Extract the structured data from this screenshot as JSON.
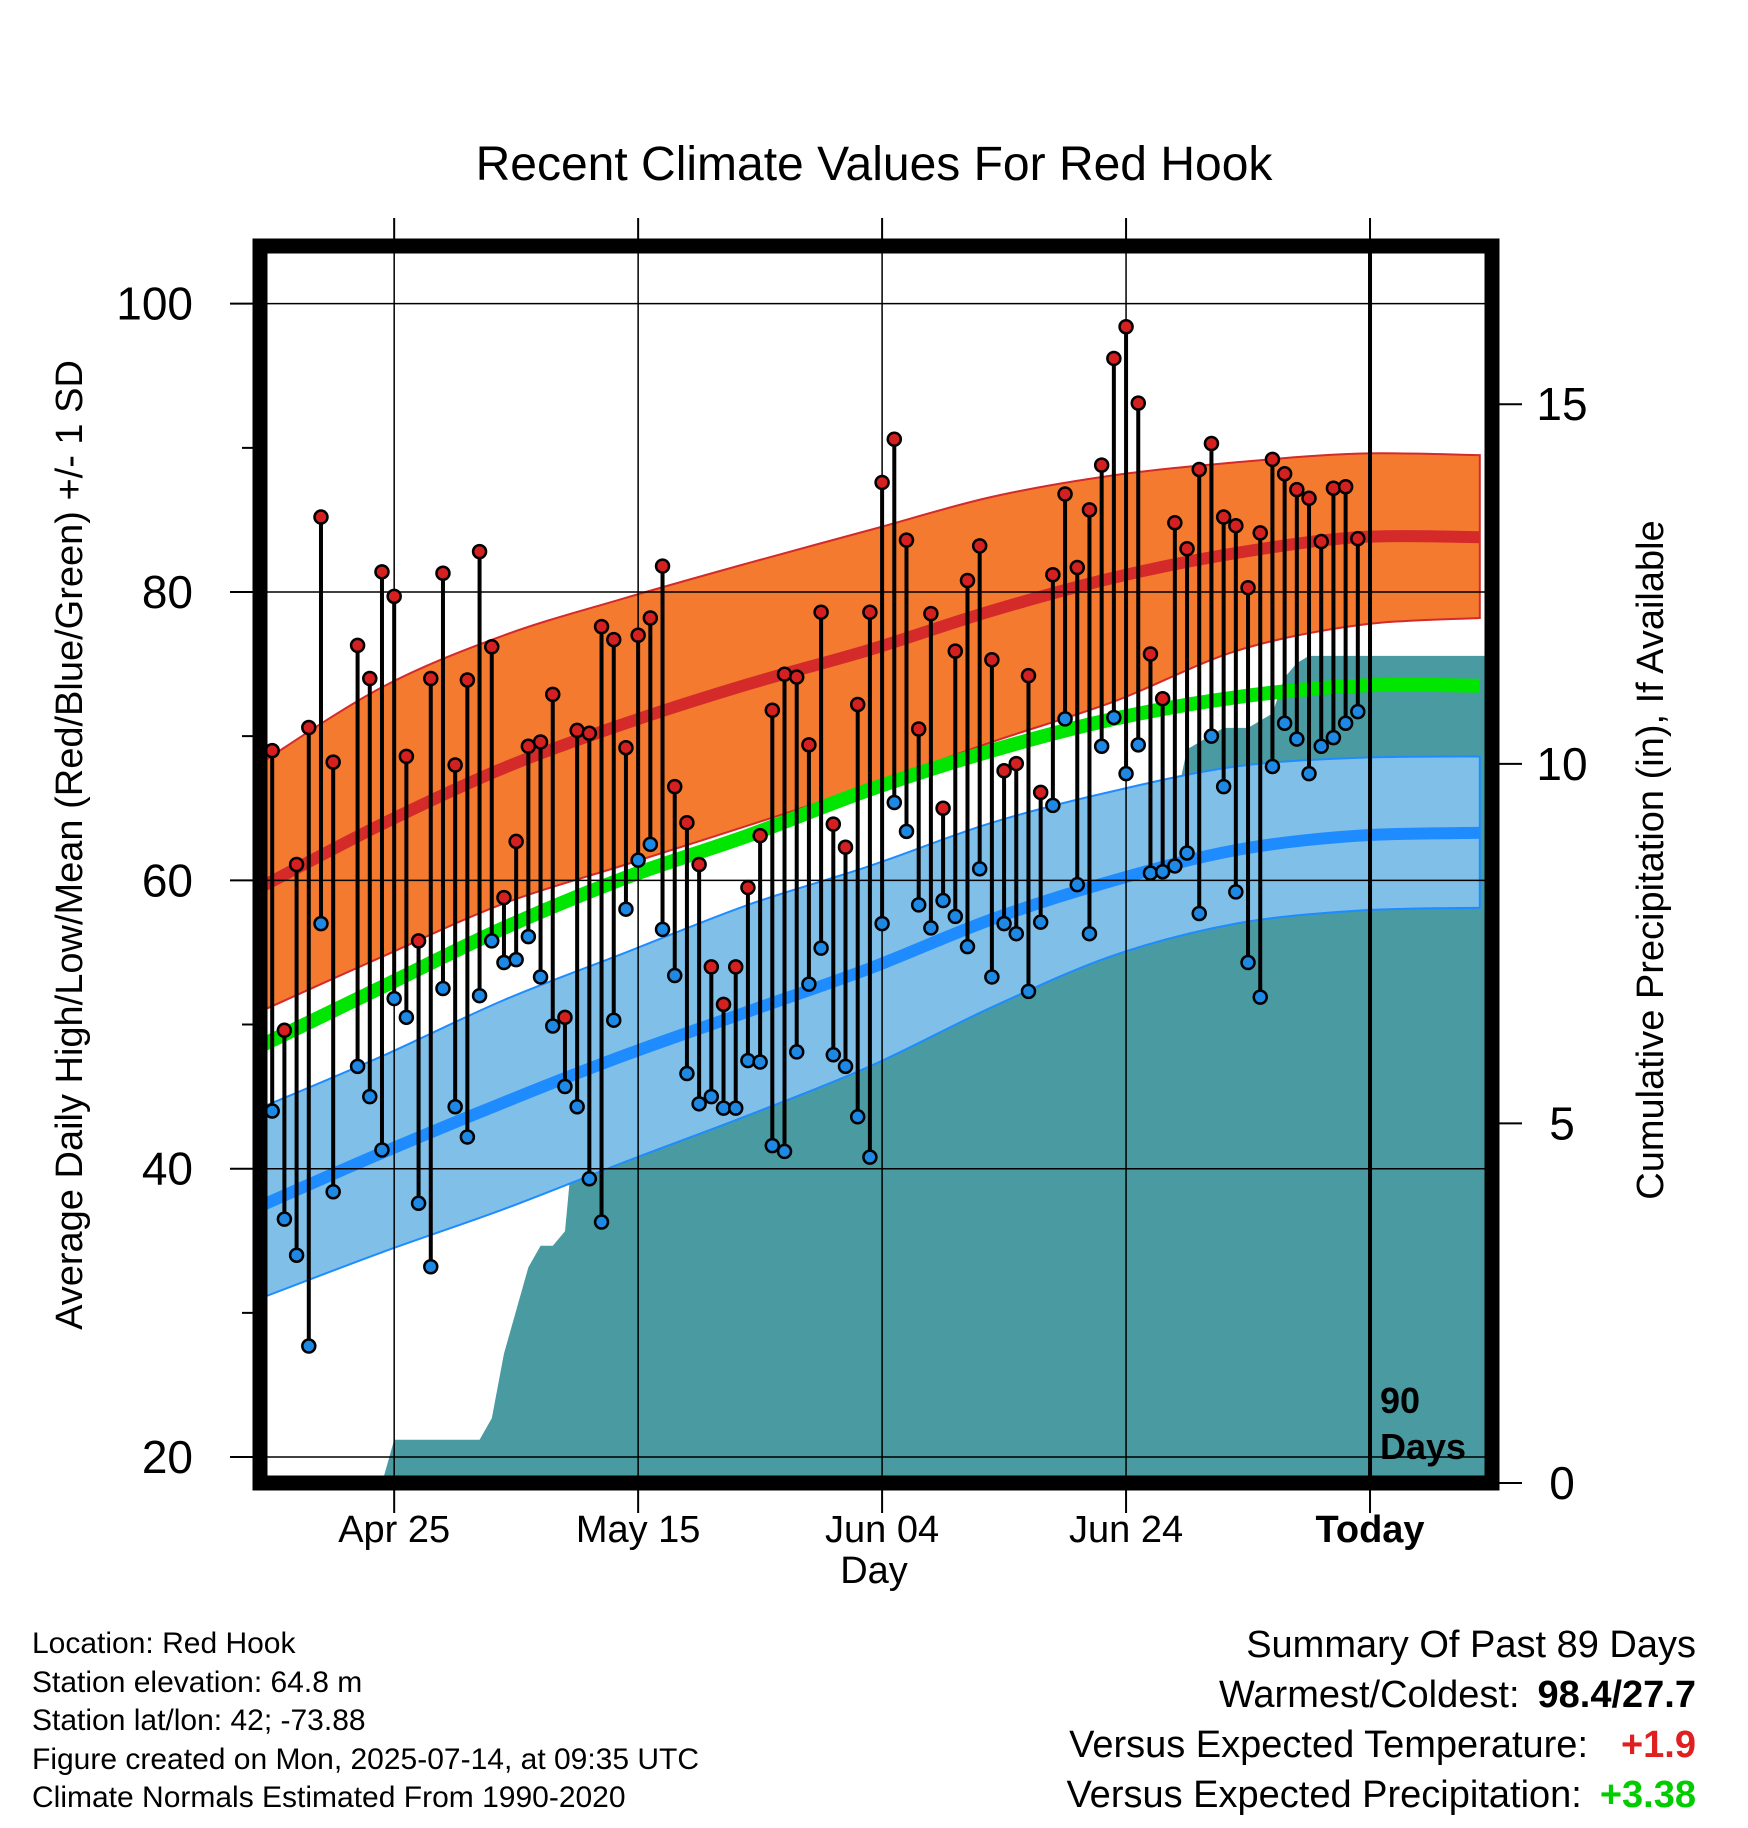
{
  "chart_data": {
    "type": "line",
    "title": "Recent Climate Values For Red Hook",
    "xlabel": "Day",
    "ylabel": "Average Daily High/Low/Mean (Red/Blue/Green) +/- 1 SD",
    "y2label": "Cumulative Precipitation (in), If Available",
    "ylim": [
      18.2,
      104
    ],
    "y2lim": [
      0,
      17.2
    ],
    "y_ticks": [
      "20",
      "40",
      "60",
      "80",
      "100"
    ],
    "y2_ticks": [
      "0",
      "5",
      "10",
      "15"
    ],
    "x_ticks": [
      {
        "label": "Apr 25",
        "day": 11
      },
      {
        "label": "May 15",
        "day": 31
      },
      {
        "label": "Jun 04",
        "day": 51
      },
      {
        "label": "Jun 24",
        "day": 71
      },
      {
        "label": "Today",
        "day": 91
      }
    ],
    "xlim": [
      0,
      101
    ],
    "today_marker": {
      "day": 91,
      "label_line1": "90",
      "label_line2": "Days"
    },
    "grid": true,
    "colors": {
      "high": "#d42a2a",
      "high_band": "#f47a30",
      "low": "#1e8cff",
      "low_band": "#80c0e8",
      "mean": "#00e600",
      "precip": "#4a9aa2"
    },
    "normals": {
      "days": [
        0,
        10,
        20,
        30,
        40,
        50,
        60,
        70,
        80,
        90,
        100
      ],
      "high_mean": [
        59.5,
        63.9,
        67.8,
        70.9,
        73.6,
        76.0,
        78.7,
        81.0,
        82.7,
        83.8,
        83.8
      ],
      "high_sd_low": [
        50.9,
        54.7,
        58.4,
        61.1,
        63.8,
        66.6,
        69.6,
        72.4,
        75.9,
        77.7,
        78.2
      ],
      "high_sd_high": [
        68.1,
        73.4,
        77.0,
        79.6,
        82.0,
        84.3,
        86.6,
        88.1,
        89.0,
        89.6,
        89.5
      ],
      "mean": [
        48.5,
        52.6,
        56.7,
        60.2,
        63.1,
        66.3,
        69.0,
        71.2,
        72.7,
        73.5,
        73.5
      ],
      "low_mean": [
        37.4,
        41.1,
        44.6,
        47.9,
        50.9,
        53.9,
        57.3,
        60.0,
        62.1,
        63.1,
        63.3
      ],
      "low_sd_low": [
        31.0,
        34.2,
        37.2,
        40.5,
        43.7,
        47.1,
        51.2,
        54.8,
        57.0,
        57.9,
        58.1
      ],
      "low_sd_high": [
        44.2,
        47.8,
        51.7,
        55.0,
        58.3,
        61.0,
        64.0,
        66.2,
        67.9,
        68.5,
        68.6
      ]
    },
    "observed": {
      "days": [
        1,
        2,
        3,
        4,
        5,
        6,
        7,
        8,
        9,
        10,
        11,
        12,
        13,
        14,
        15,
        16,
        17,
        18,
        19,
        20,
        21,
        22,
        23,
        24,
        25,
        26,
        27,
        28,
        29,
        30,
        31,
        32,
        33,
        34,
        35,
        36,
        37,
        38,
        39,
        40,
        41,
        42,
        43,
        44,
        45,
        46,
        47,
        48,
        49,
        50,
        51,
        52,
        53,
        54,
        55,
        56,
        57,
        58,
        59,
        60,
        61,
        62,
        63,
        64,
        65,
        66,
        67,
        68,
        69,
        70,
        71,
        72,
        73,
        74,
        75,
        76,
        77,
        78,
        79,
        80,
        81,
        82,
        83,
        84,
        85,
        86,
        87,
        88,
        89,
        90
      ],
      "high": [
        69.0,
        49.6,
        61.1,
        70.6,
        85.2,
        68.2,
        null,
        76.3,
        74.0,
        81.4,
        79.7,
        68.6,
        55.8,
        74.0,
        81.3,
        68.0,
        73.9,
        82.8,
        76.2,
        58.8,
        62.7,
        69.3,
        69.6,
        72.9,
        50.5,
        70.4,
        70.2,
        77.6,
        76.7,
        69.2,
        77.0,
        78.2,
        81.8,
        66.5,
        64.0,
        61.1,
        54.0,
        51.4,
        54.0,
        59.5,
        63.1,
        71.8,
        74.3,
        74.1,
        69.4,
        78.6,
        63.9,
        62.3,
        72.2,
        78.6,
        87.6,
        90.6,
        83.6,
        70.5,
        78.5,
        65.0,
        75.9,
        80.8,
        83.2,
        75.3,
        67.6,
        68.1,
        74.2,
        66.1,
        81.2,
        86.8,
        81.7,
        85.7,
        88.8,
        96.2,
        98.4,
        93.1,
        75.7,
        72.6,
        84.8,
        83.0,
        88.5,
        90.3,
        85.2,
        84.6,
        80.3,
        84.1,
        89.2,
        88.2,
        87.1,
        86.5,
        83.5,
        87.2,
        87.3,
        83.7
      ],
      "low": [
        44.0,
        36.5,
        34.0,
        27.7,
        57.0,
        38.4,
        null,
        47.1,
        45.0,
        41.3,
        51.8,
        50.5,
        37.6,
        33.2,
        52.5,
        44.3,
        42.2,
        52.0,
        55.8,
        54.3,
        54.5,
        56.1,
        53.3,
        49.9,
        45.7,
        44.3,
        39.3,
        36.3,
        50.3,
        58.0,
        61.4,
        62.5,
        56.6,
        53.4,
        46.6,
        44.5,
        45.0,
        44.2,
        44.2,
        47.5,
        47.4,
        41.6,
        41.2,
        48.1,
        52.8,
        55.3,
        47.9,
        47.1,
        43.6,
        40.8,
        57.0,
        65.4,
        63.4,
        58.3,
        56.7,
        58.6,
        57.5,
        55.4,
        60.8,
        53.3,
        57.0,
        56.3,
        52.3,
        57.1,
        65.2,
        71.2,
        59.7,
        56.3,
        69.3,
        71.3,
        67.4,
        69.4,
        60.5,
        60.6,
        61.0,
        61.9,
        57.7,
        70.0,
        66.5,
        59.2,
        54.3,
        51.9,
        67.9,
        70.9,
        69.8,
        67.4,
        69.3,
        69.9,
        70.9,
        71.7
      ]
    },
    "precip": {
      "days": [
        0,
        10,
        11,
        18,
        19,
        20,
        21,
        22,
        23,
        24,
        25,
        26,
        27,
        29,
        31,
        33,
        36,
        37,
        38,
        40,
        45,
        46,
        47,
        49,
        51,
        52,
        53,
        55,
        56,
        57,
        59,
        61,
        62,
        64,
        65,
        66,
        67,
        69,
        70,
        71,
        74,
        75,
        76,
        77,
        78,
        79,
        81,
        82,
        83,
        84,
        85,
        86,
        87,
        101
      ],
      "values": [
        0,
        0,
        0.6,
        0.6,
        0.9,
        1.8,
        2.4,
        3.0,
        3.3,
        3.3,
        3.5,
        5.3,
        5.3,
        5.3,
        5.4,
        5.4,
        5.4,
        5.5,
        5.6,
        5.7,
        5.7,
        5.8,
        7.5,
        7.5,
        7.5,
        7.8,
        8.0,
        8.2,
        8.4,
        8.5,
        8.5,
        8.7,
        8.7,
        8.9,
        9.2,
        9.3,
        9.3,
        9.4,
        9.4,
        9.4,
        9.4,
        9.4,
        10.2,
        10.3,
        10.4,
        10.5,
        10.5,
        10.6,
        10.7,
        11.2,
        11.4,
        11.5,
        11.5,
        11.5
      ]
    }
  },
  "footer": {
    "location": "Location: Red Hook",
    "elevation": "Station elevation: 64.8 m",
    "latlon": "Station lat/lon: 42; -73.88",
    "created": "Figure created on Mon, 2025-07-14, at 09:35 UTC",
    "normals": "Climate Normals Estimated From 1990-2020"
  },
  "summary": {
    "title": "Summary Of Past 89 Days",
    "warmest_label": "Warmest/Coldest:",
    "warmest_value": "98.4/27.7",
    "temp_label": "Versus Expected Temperature:",
    "temp_value": "+1.9",
    "temp_color": "#e02020",
    "precip_label": "Versus Expected Precipitation:",
    "precip_value": "+3.38",
    "precip_color": "#00cc00"
  }
}
